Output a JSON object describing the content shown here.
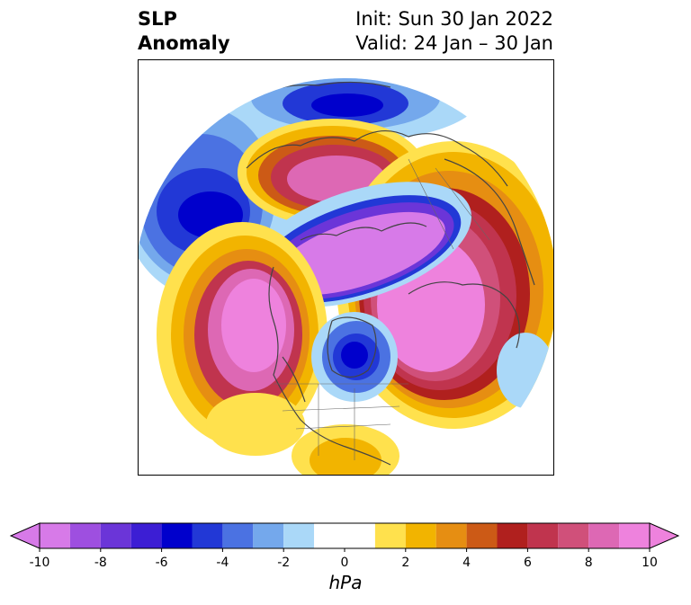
{
  "title": {
    "left_line1": "SLP",
    "left_line2": "Anomaly",
    "right_line1": "Init: Sun 30 Jan 2022",
    "right_line2": "Valid: 24 Jan – 30 Jan"
  },
  "colorbar": {
    "unit": "hPa",
    "ticks": [
      "-10",
      "-8",
      "-6",
      "-4",
      "-2",
      "0",
      "2",
      "4",
      "6",
      "8",
      "10"
    ],
    "levels": [
      -10,
      -9,
      -8,
      -7,
      -6,
      -5,
      -4,
      -3,
      -2,
      -1,
      1,
      2,
      3,
      4,
      5,
      6,
      7,
      8,
      9,
      10
    ],
    "colors": [
      "#d77ae8",
      "#9e4fe0",
      "#6b35d8",
      "#3c1ed4",
      "#0000cc",
      "#2238d6",
      "#4b72e2",
      "#74a8ec",
      "#aad8f8",
      "#ffffff",
      "#ffe14d",
      "#f2b400",
      "#e68e12",
      "#cc5a16",
      "#b0201e",
      "#c0344e",
      "#d0507a",
      "#dd68b4",
      "#ee82dd"
    ],
    "under_color": "#d77ae8",
    "over_color": "#ee82dd"
  }
}
